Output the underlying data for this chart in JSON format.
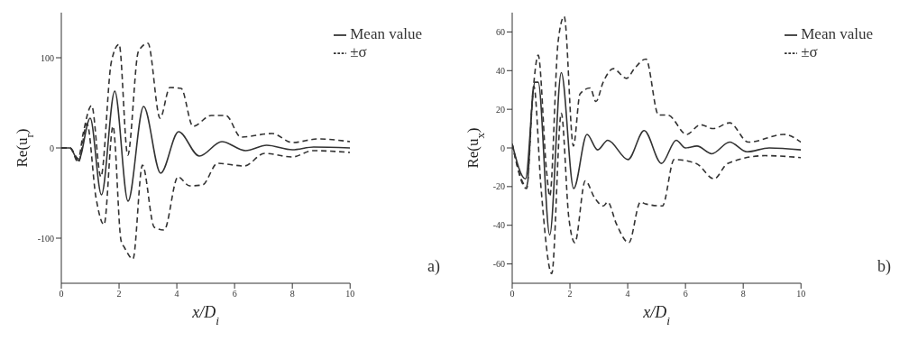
{
  "chart_data": [
    {
      "type": "line",
      "xlabel": "x/D$_{i}$",
      "ylabel": "Re(u$_{r}$)",
      "xlim": [
        0,
        10
      ],
      "xticks": [
        0,
        2,
        4,
        6,
        8,
        10
      ],
      "ylim": [
        -150,
        150
      ],
      "yticks": [
        -100,
        0,
        100
      ],
      "legend": "top right",
      "annotations": [
        "a)"
      ],
      "series": [
        {
          "name": "Mean value",
          "color": "#333333",
          "line_style": "solid",
          "x": [
            0,
            0.3,
            0.59,
            1.0,
            1.39,
            1.85,
            2.31,
            2.85,
            3.44,
            4.06,
            4.78,
            5.56,
            6.38,
            7.11,
            8.0,
            8.74,
            10
          ],
          "values": [
            0,
            0,
            -14,
            33,
            -52,
            63,
            -59,
            46,
            -28,
            18,
            -9,
            7,
            -3,
            3,
            -2,
            1,
            0
          ]
        },
        {
          "name": "±σ",
          "color": "#333333",
          "line_style": "dashed",
          "x": [
            0,
            0.3,
            0.59,
            0.75,
            1.05,
            1.37,
            1.73,
            2.0,
            2.3,
            2.67,
            3.0,
            3.42,
            3.76,
            4.15,
            4.56,
            5.19,
            5.7,
            6.22,
            7.3,
            8.0,
            8.89,
            10
          ],
          "values": [
            0,
            0,
            -12,
            15,
            47,
            -32,
            95,
            115,
            -8,
            107,
            116,
            33,
            67,
            66,
            24,
            36,
            36,
            12,
            16,
            6,
            10,
            7
          ]
        },
        {
          "color": "#333333",
          "line_style": "dashed",
          "x": [
            0,
            0.3,
            0.59,
            0.89,
            1.2,
            1.48,
            1.79,
            2.07,
            2.18,
            2.48,
            2.81,
            3.22,
            3.56,
            4.04,
            4.44,
            4.89,
            5.41,
            6.33,
            7.04,
            8.0,
            8.7,
            10
          ],
          "values": [
            0,
            0,
            -16,
            27,
            -55,
            -85,
            24,
            -103,
            -110,
            -123,
            -19,
            -88,
            -91,
            -32,
            -42,
            -41,
            -17,
            -20,
            -6,
            -10,
            -3,
            -5
          ]
        }
      ]
    },
    {
      "type": "line",
      "xlabel": "x/D$_{i}$",
      "ylabel": "Re(u$_{x}$)",
      "xlim": [
        0,
        10
      ],
      "xticks": [
        0,
        2,
        4,
        6,
        8,
        10
      ],
      "ylim": [
        -70,
        70
      ],
      "yticks": [
        -60,
        -40,
        -20,
        0,
        20,
        40,
        60
      ],
      "legend": "top right",
      "annotations": [
        "b)"
      ],
      "series": [
        {
          "name": "Mean value",
          "color": "#333333",
          "line_style": "solid",
          "x": [
            0,
            0.46,
            0.79,
            0.9,
            1.3,
            1.7,
            2.13,
            2.59,
            2.96,
            3.31,
            4.01,
            4.57,
            5.17,
            5.68,
            6.0,
            6.4,
            6.91,
            7.53,
            8.13,
            8.9,
            10
          ],
          "values": [
            2,
            -16,
            34,
            34,
            -45,
            39,
            -21,
            7,
            -1,
            4,
            -6,
            9,
            -8,
            4,
            0,
            1,
            -3,
            3,
            -2,
            0,
            -1
          ]
        },
        {
          "name": "±σ",
          "color": "#333333",
          "line_style": "dashed",
          "x": [
            0,
            0.5,
            0.72,
            0.9,
            1.19,
            1.3,
            1.59,
            1.8,
            2.12,
            2.35,
            2.7,
            2.9,
            3.15,
            3.5,
            3.96,
            4.23,
            4.63,
            5.07,
            5.39,
            6.04,
            6.52,
            6.96,
            7.53,
            8.18,
            9.41,
            10
          ],
          "values": [
            2,
            -21,
            29,
            48,
            -12,
            -25,
            55,
            68,
            1,
            28,
            31,
            24,
            34,
            41,
            36,
            41,
            46,
            17,
            17,
            7,
            12,
            10,
            13,
            3,
            7,
            3
          ]
        },
        {
          "color": "#333333",
          "line_style": "dashed",
          "x": [
            0,
            0.5,
            0.75,
            1.0,
            1.37,
            1.7,
            1.96,
            2.17,
            2.53,
            2.86,
            3.15,
            3.31,
            3.6,
            4.04,
            4.44,
            4.63,
            5.2,
            5.61,
            6.37,
            6.99,
            7.46,
            8.76,
            10
          ],
          "values": [
            2,
            -20,
            32,
            -21,
            -65,
            18,
            -36,
            -49,
            -17,
            -26,
            -30,
            -28,
            -39,
            -49,
            -28,
            -29,
            -30,
            -6,
            -8,
            -16,
            -8,
            -4,
            -5
          ]
        }
      ]
    }
  ]
}
